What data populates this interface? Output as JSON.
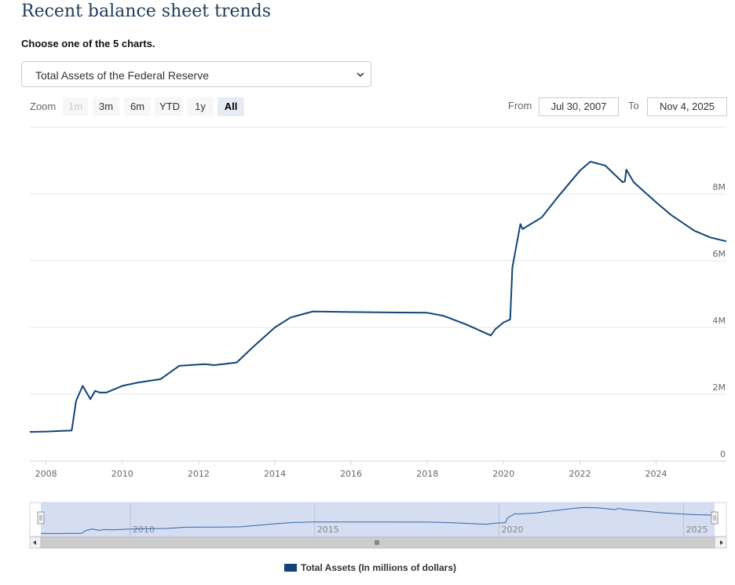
{
  "page": {
    "title": "Recent balance sheet trends",
    "chooser_label": "Choose one of the 5 charts.",
    "selected_chart": "Total Assets of the Federal Reserve"
  },
  "toolbar": {
    "zoom_label": "Zoom",
    "zoom_buttons": [
      {
        "label": "1m",
        "state": "disabled"
      },
      {
        "label": "3m",
        "state": "normal"
      },
      {
        "label": "6m",
        "state": "normal"
      },
      {
        "label": "YTD",
        "state": "normal"
      },
      {
        "label": "1y",
        "state": "normal"
      },
      {
        "label": "All",
        "state": "active"
      }
    ],
    "from_label": "From",
    "from_value": "Jul 30, 2007",
    "to_label": "To",
    "to_value": "Nov 4, 2025"
  },
  "colors": {
    "line": "#114477",
    "navigator_fill": "#d0d9ee",
    "title": "#1f3c5b"
  },
  "chart_data": {
    "type": "line",
    "title": "",
    "x_start": "2007-07-30",
    "x_end": "2025-11-04",
    "x_ticks": [
      "2008",
      "2010",
      "2012",
      "2014",
      "2016",
      "2018",
      "2020",
      "2022",
      "2024"
    ],
    "y_ticks": [
      "0",
      "2M",
      "4M",
      "6M",
      "8M"
    ],
    "ylim": [
      0,
      10000000
    ],
    "navigator_ticks": [
      "2010",
      "2015",
      "2020",
      "2025"
    ],
    "series": [
      {
        "name": "Total Assets (In millions of dollars)",
        "x": [
          "2007-07-30",
          "2008-01-01",
          "2008-06-01",
          "2008-09-03",
          "2008-10-15",
          "2008-12-17",
          "2009-03-01",
          "2009-04-15",
          "2009-06-01",
          "2009-08-01",
          "2010-01-01",
          "2010-06-01",
          "2011-01-01",
          "2011-06-30",
          "2012-03-01",
          "2012-06-01",
          "2013-01-01",
          "2013-06-01",
          "2014-01-01",
          "2014-06-01",
          "2015-01-01",
          "2016-01-01",
          "2017-01-01",
          "2018-01-01",
          "2018-06-01",
          "2019-01-01",
          "2019-09-01",
          "2019-10-15",
          "2020-01-01",
          "2020-03-04",
          "2020-03-25",
          "2020-06-10",
          "2020-07-01",
          "2021-01-01",
          "2021-06-01",
          "2022-01-01",
          "2022-04-13",
          "2022-09-01",
          "2023-02-15",
          "2023-03-08",
          "2023-03-22",
          "2023-06-01",
          "2024-01-01",
          "2024-06-01",
          "2025-01-01",
          "2025-06-01",
          "2025-11-04"
        ],
        "values": [
          870000,
          880000,
          900000,
          910000,
          1800000,
          2250000,
          1850000,
          2100000,
          2050000,
          2050000,
          2250000,
          2350000,
          2450000,
          2850000,
          2900000,
          2870000,
          2950000,
          3400000,
          4000000,
          4300000,
          4480000,
          4460000,
          4450000,
          4440000,
          4350000,
          4100000,
          3760000,
          3950000,
          4150000,
          4240000,
          5800000,
          7100000,
          6950000,
          7300000,
          7900000,
          8700000,
          8970000,
          8850000,
          8350000,
          8380000,
          8730000,
          8350000,
          7750000,
          7350000,
          6900000,
          6700000,
          6580000
        ]
      }
    ],
    "legend": "bottom-center",
    "grid": true
  }
}
